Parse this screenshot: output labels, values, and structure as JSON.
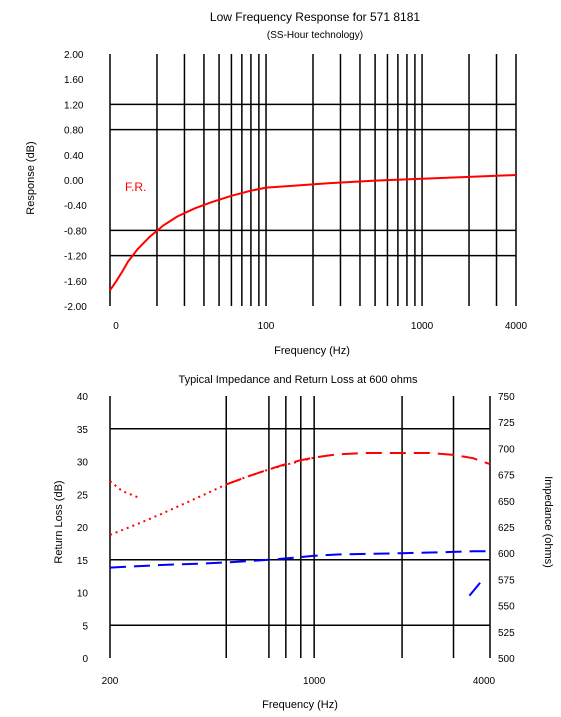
{
  "chart_data": [
    {
      "type": "line",
      "title": "Low Frequency Response for 571 8181",
      "subtitle": "(SS-Hour technology)",
      "xlabel": "Frequency (Hz)",
      "ylabel": "Response (dB)",
      "x_scale": "log",
      "xlim": [
        10,
        4000
      ],
      "ylim": [
        -2.0,
        2.0
      ],
      "x_tick_labels": [
        "0",
        "100",
        "1000",
        "4000"
      ],
      "y_ticks": [
        2.0,
        1.6,
        1.2,
        0.8,
        0.4,
        0.0,
        -0.4,
        -0.8,
        -1.2,
        -1.6,
        -2.0
      ],
      "y_tick_labels": [
        "2.00",
        "1.60",
        "1.20",
        "0.80",
        "0.40",
        "0.00",
        "-0.40",
        "-0.80",
        "-1.20",
        "-1.60",
        "-2.00"
      ],
      "grid": true,
      "annotations": [
        {
          "text": "F.R.",
          "color": "#ff0000"
        }
      ],
      "series": [
        {
          "color": "#ff0000",
          "style": "solid",
          "x": [
            10,
            11,
            12,
            13,
            15,
            18,
            22,
            27,
            35,
            45,
            60,
            80,
            100,
            150,
            250,
            500,
            1000,
            2000,
            4000
          ],
          "y": [
            -1.75,
            -1.6,
            -1.45,
            -1.3,
            -1.1,
            -0.9,
            -0.72,
            -0.58,
            -0.45,
            -0.35,
            -0.25,
            -0.17,
            -0.12,
            -0.09,
            -0.05,
            -0.01,
            0.02,
            0.05,
            0.08
          ]
        }
      ]
    },
    {
      "type": "line",
      "title": "Typical Impedance and Return Loss at 600 ohms",
      "xlabel": "Frequency (Hz)",
      "ylabel": "Return Loss (dB)",
      "ylabel_right": "Impedance (ohms)",
      "x_scale": "log",
      "xlim": [
        200,
        4000
      ],
      "ylim": [
        0,
        40
      ],
      "ylim_right": [
        500,
        750
      ],
      "x_tick_labels": [
        "200",
        "1000",
        "4000"
      ],
      "y_tick_labels": [
        "40",
        "35",
        "30",
        "25",
        "20",
        "15",
        "10",
        "5",
        "0"
      ],
      "y_ticks_right": [
        750,
        725,
        700,
        675,
        650,
        625,
        600,
        575,
        550,
        525,
        500
      ],
      "grid": true,
      "series": [
        {
          "color": "#ff0000",
          "style": "dotted",
          "axis": "left",
          "x": [
            200,
            250,
            300,
            400,
            500,
            600,
            700,
            800,
            1000
          ],
          "y": [
            18.8,
            20.5,
            22,
            24.5,
            26.5,
            27.8,
            28.8,
            29.5,
            30.6
          ]
        },
        {
          "color": "#ff0000",
          "style": "dashed",
          "axis": "left",
          "x": [
            500,
            600,
            700,
            800,
            900,
            1000,
            1200,
            1500,
            2000,
            2500,
            3000,
            3500,
            4000
          ],
          "y": [
            26.5,
            27.8,
            28.8,
            29.6,
            30.2,
            30.6,
            31.1,
            31.3,
            31.3,
            31.3,
            31.0,
            30.5,
            29.6
          ]
        },
        {
          "color": "#ff0000",
          "style": "dotted",
          "axis": "left",
          "x": [
            200,
            220,
            250
          ],
          "y": [
            27.0,
            25.5,
            24.5
          ]
        },
        {
          "color": "#0000ff",
          "style": "dashed",
          "axis": "left",
          "x": [
            200,
            300,
            400,
            500,
            600,
            700,
            800,
            900,
            1000,
            1200,
            1500,
            2000,
            2500,
            3000,
            3500,
            4000
          ],
          "y": [
            13.8,
            14.2,
            14.4,
            14.6,
            14.8,
            15.0,
            15.2,
            15.4,
            15.6,
            15.8,
            15.9,
            16.0,
            16.1,
            16.2,
            16.3,
            16.3
          ]
        },
        {
          "color": "#0000ff",
          "style": "solid",
          "axis": "left",
          "x": [
            3400,
            3700
          ],
          "y": [
            9.5,
            11.5
          ]
        }
      ]
    }
  ]
}
